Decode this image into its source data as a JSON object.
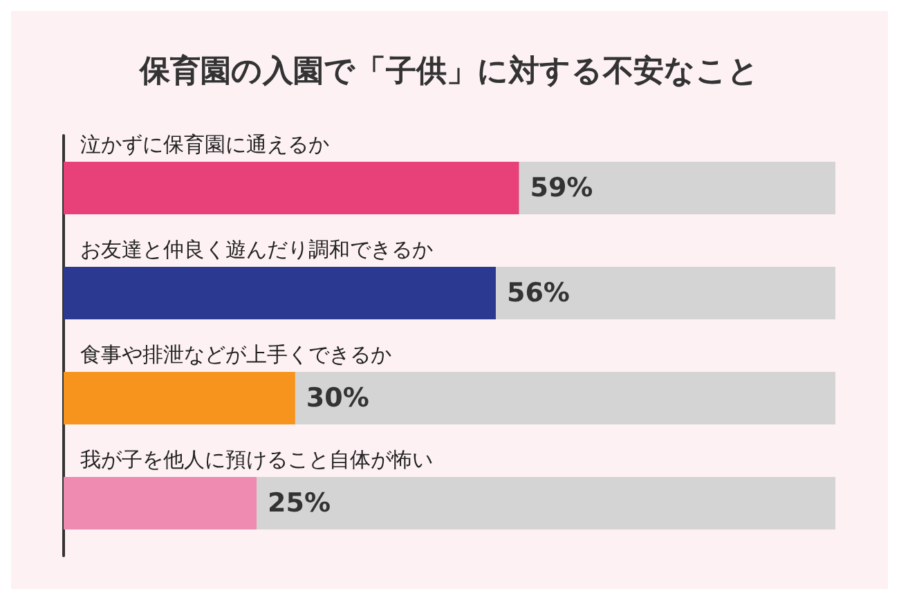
{
  "chart_data": {
    "type": "bar",
    "orientation": "horizontal",
    "title": "保育園の入園で「子供」に対する不安なこと",
    "categories": [
      "泣かずに保育園に通えるか",
      "お友達と仲良く遊んだり調和できるか",
      "食事や排泄などが上手くできるか",
      "我が子を他人に預けること自体が怖い"
    ],
    "values": [
      59,
      56,
      30,
      25
    ],
    "colors": [
      "#e8417a",
      "#2b3990",
      "#f7941d",
      "#ef8ab0"
    ],
    "value_labels": [
      "59%",
      "56%",
      "30%",
      "25%"
    ],
    "xlim": [
      0,
      100
    ]
  }
}
